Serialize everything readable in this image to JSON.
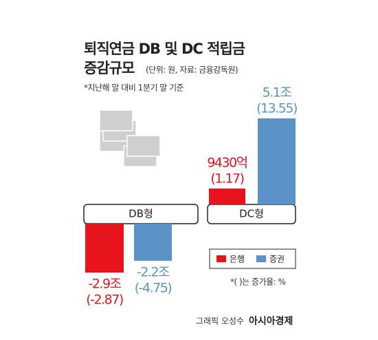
{
  "chart_data": {
    "type": "bar",
    "title": [
      "퇴직연금 DB 및 DC 적립금",
      "증감규모"
    ],
    "unit_note": "(단위: 원, 자료: 금융감독원)",
    "subtitle": "*지난해 말 대비 1분기 말 기준",
    "categories": [
      "DB형",
      "DC형"
    ],
    "series": [
      {
        "name": "은행",
        "color": "#e8141c",
        "values": [
          -29000,
          9430
        ],
        "value_labels": [
          "-2.9조",
          "9430억"
        ],
        "rates": [
          -2.87,
          1.17
        ],
        "rate_labels": [
          "(-2.87)",
          "(1.17)"
        ]
      },
      {
        "name": "증권",
        "color": "#5b93c9",
        "values": [
          -22000,
          51000
        ],
        "value_labels": [
          "-2.2조",
          "5.1조"
        ],
        "rates": [
          -4.75,
          13.55
        ],
        "rate_labels": [
          "(-4.75)",
          "(13.55)"
        ]
      }
    ],
    "note": "*( )는 증가율: %",
    "credit": "그래픽 오성수",
    "publisher": "아시아경제"
  }
}
